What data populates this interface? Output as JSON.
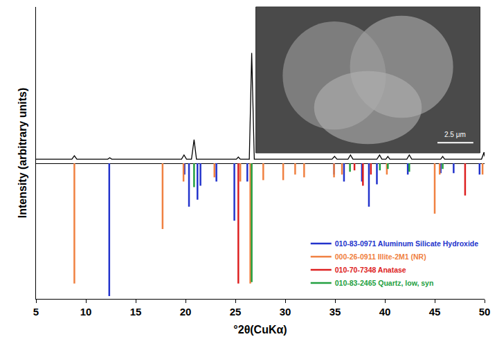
{
  "chart_data": {
    "type": "line",
    "x_label": "°2θ(CuKα)",
    "y_label": "Intensity (arbitrary units)",
    "xlim": [
      5,
      50
    ],
    "xticks": [
      5,
      10,
      15,
      20,
      25,
      30,
      35,
      40,
      45,
      50
    ],
    "ylim": [
      -97,
      112
    ],
    "tick_labels": "x",
    "grid": false,
    "legend": "lower right",
    "annotations": [
      {
        "text": "2.5 μm"
      }
    ],
    "series": [
      {
        "type": "line",
        "color": "#000000",
        "x": [
          5,
          8.6,
          8.85,
          9.1,
          12.2,
          12.4,
          12.6,
          19.6,
          19.85,
          20.1,
          20.6,
          20.86,
          21.1,
          25.1,
          25.3,
          25.5,
          26.4,
          26.64,
          26.9,
          34.7,
          34.95,
          35.2,
          36.3,
          36.55,
          36.8,
          39.2,
          39.47,
          39.7,
          40.1,
          40.3,
          40.5,
          42.2,
          42.45,
          42.7,
          45.6,
          45.8,
          46.0,
          49.7,
          49.95,
          50
        ],
        "values": [
          3,
          3,
          5.5,
          3,
          3,
          4,
          3,
          3,
          6,
          3,
          3,
          17,
          3,
          3,
          4.5,
          3,
          3,
          79,
          3,
          3,
          5,
          3,
          3,
          6,
          3,
          3,
          6,
          3,
          3,
          5,
          3,
          3,
          6,
          3,
          3,
          5,
          3,
          3,
          8,
          5
        ]
      },
      {
        "type": "stick",
        "name": "010-83-0971 Aluminum Silicate Hydroxide",
        "color": "#2233cc",
        "x": [
          12.35,
          19.9,
          20.35,
          21.2,
          21.5,
          23.1,
          24.9,
          26.2,
          34.9,
          35.9,
          37.7,
          38.4,
          39.2,
          42.3,
          45.6,
          46.9,
          49.5
        ],
        "values": [
          -95,
          -8,
          -31,
          -26,
          -16,
          -13,
          -41,
          -13,
          -8,
          -13,
          -13,
          -31,
          -15,
          -8,
          -7,
          -7,
          -8
        ]
      },
      {
        "type": "stick",
        "name": "000-26-0911 Illite-2M1 (NR)",
        "color": "#f08040",
        "x": [
          8.85,
          17.7,
          19.8,
          22.9,
          25.5,
          26.5,
          27.8,
          29.8,
          31.0,
          31.9,
          34.9,
          35.7,
          40.2,
          45.0,
          45.5,
          49.8
        ],
        "values": [
          -86,
          -47,
          -13,
          -10,
          -13,
          -86,
          -12,
          -12,
          -8,
          -10,
          -10,
          -8,
          -8,
          -36,
          -8,
          -8
        ]
      },
      {
        "type": "stick",
        "name": "010-70-7348 Anatase",
        "color": "#dd2020",
        "x": [
          25.3,
          36.95,
          37.8,
          38.6,
          48.05
        ],
        "values": [
          -86,
          -5,
          -16,
          -8,
          -23
        ]
      },
      {
        "type": "stick",
        "name": "010-83-2465 Quartz, low, syn",
        "color": "#22a040",
        "x": [
          20.86,
          26.64,
          36.5,
          39.5,
          40.3,
          42.45,
          45.8
        ],
        "values": [
          -17,
          -85,
          -6,
          -5,
          -4,
          -6,
          -4
        ]
      }
    ]
  }
}
